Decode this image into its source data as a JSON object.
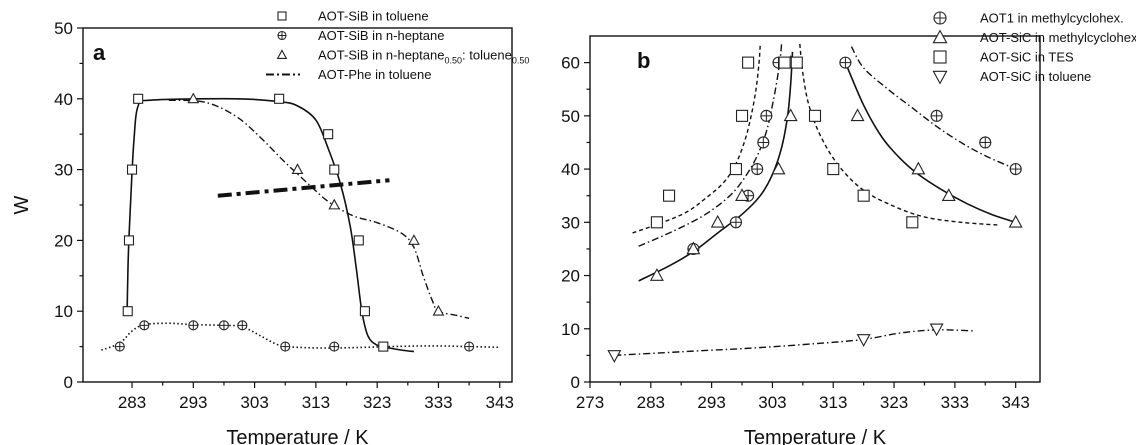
{
  "chart_data": [
    {
      "panel_label": "a",
      "type": "scatter",
      "xlabel": "Temperature / K",
      "ylabel": "W",
      "xlim": [
        275,
        345
      ],
      "ylim": [
        0,
        50
      ],
      "xticks": [
        283,
        293,
        303,
        313,
        323,
        333,
        343
      ],
      "yticks": [
        0,
        10,
        20,
        30,
        40,
        50
      ],
      "legend_position": "top-right",
      "legend": [
        {
          "text": "AOT-SiB in toluene",
          "marker": "square",
          "line": "none"
        },
        {
          "text": "AOT-SiB in n-heptane",
          "marker": "circle-plus",
          "line": "none"
        },
        {
          "text": "AOT-SiB in n-heptane",
          "sub1": "0.50",
          "mid": ": toluene",
          "sub2": "0.50",
          "marker": "triangle",
          "line": "none"
        },
        {
          "text": "AOT-Phe in toluene",
          "marker": "none",
          "line": "dashdot-thick"
        }
      ],
      "series": [
        {
          "name": "AOT-SiB in toluene",
          "marker": "square",
          "points": [
            [
              282.3,
              10
            ],
            [
              282.5,
              20
            ],
            [
              283,
              30
            ],
            [
              284,
              40
            ],
            [
              307,
              40
            ],
            [
              315,
              35
            ],
            [
              316,
              30
            ],
            [
              320,
              20
            ],
            [
              321,
              10
            ],
            [
              324,
              5
            ]
          ],
          "curve": [
            [
              282.2,
              10
            ],
            [
              282.4,
              18
            ],
            [
              282.8,
              26
            ],
            [
              283.3,
              34
            ],
            [
              284,
              39
            ],
            [
              286,
              39.8
            ],
            [
              300,
              40
            ],
            [
              307,
              39.6
            ],
            [
              310,
              39
            ],
            [
              313,
              37
            ],
            [
              315,
              33
            ],
            [
              317,
              28
            ],
            [
              318.6,
              22
            ],
            [
              319.6,
              16
            ],
            [
              320.5,
              10
            ],
            [
              321.5,
              6.5
            ],
            [
              323,
              5.2
            ],
            [
              325,
              4.8
            ],
            [
              327,
              4.5
            ],
            [
              329,
              4.3
            ]
          ],
          "curve_style": "solid"
        },
        {
          "name": "AOT-SiB in n-heptane",
          "marker": "circle-plus",
          "points": [
            [
              281,
              5
            ],
            [
              285,
              8
            ],
            [
              293,
              8
            ],
            [
              298,
              8
            ],
            [
              301,
              8
            ],
            [
              308,
              5
            ],
            [
              316,
              5
            ],
            [
              338,
              5
            ]
          ],
          "curve": [
            [
              278,
              4.5
            ],
            [
              281,
              5.5
            ],
            [
              283,
              7.2
            ],
            [
              285,
              8.1
            ],
            [
              289,
              8.3
            ],
            [
              293,
              8.1
            ],
            [
              298,
              8
            ],
            [
              301,
              7.8
            ],
            [
              304,
              6.5
            ],
            [
              307,
              5.2
            ],
            [
              310,
              4.9
            ],
            [
              316,
              4.8
            ],
            [
              325,
              5
            ],
            [
              332,
              5.1
            ],
            [
              338,
              5
            ],
            [
              343,
              4.9
            ]
          ],
          "curve_style": "dotted"
        },
        {
          "name": "AOT-SiB in n-heptane 0.50 : toluene 0.50",
          "marker": "triangle",
          "points": [
            [
              293,
              40
            ],
            [
              310,
              30
            ],
            [
              316,
              25
            ],
            [
              329,
              20
            ],
            [
              333,
              10
            ]
          ],
          "curve": [
            [
              289,
              39.8
            ],
            [
              295,
              39.5
            ],
            [
              300,
              37.5
            ],
            [
              304,
              34.5
            ],
            [
              308,
              31
            ],
            [
              312,
              27.8
            ],
            [
              315,
              25.5
            ],
            [
              319,
              23.5
            ],
            [
              323,
              22.5
            ],
            [
              327,
              21
            ],
            [
              329,
              19
            ],
            [
              330.5,
              15
            ],
            [
              332,
              11.5
            ],
            [
              333,
              10
            ],
            [
              336,
              9.4
            ],
            [
              338,
              9
            ]
          ],
          "curve_style": "dashdot"
        },
        {
          "name": "AOT-Phe in toluene",
          "marker": "none",
          "points": [],
          "curve": [
            [
              297,
              26.3
            ],
            [
              325,
              28.5
            ]
          ],
          "curve_style": "dashdot-thick"
        }
      ]
    },
    {
      "panel_label": "b",
      "type": "scatter",
      "xlabel": "Temperature / K",
      "ylabel": "",
      "xlim": [
        273,
        347
      ],
      "ylim": [
        0,
        65
      ],
      "xticks": [
        273,
        283,
        293,
        303,
        313,
        323,
        333,
        343
      ],
      "yticks": [
        0,
        10,
        20,
        30,
        40,
        50,
        60
      ],
      "legend_position": "top-right",
      "legend": [
        {
          "text": "AOT1 in methylcyclohex.",
          "marker": "circle-plus-large",
          "line": "none"
        },
        {
          "text": "AOT-SiC in methylcyclohex",
          "marker": "triangle-large",
          "line": "none"
        },
        {
          "text": "AOT-SiC in TES",
          "marker": "square-large",
          "line": "none"
        },
        {
          "text": "AOT-SiC in toluene",
          "marker": "triangle-down-large",
          "line": "none"
        }
      ],
      "series": [
        {
          "name": "AOT1 in methylcyclohex.",
          "marker": "circle-plus",
          "points": [
            [
              290,
              25
            ],
            [
              297,
              30
            ],
            [
              299,
              35
            ],
            [
              300.5,
              40
            ],
            [
              301.5,
              45
            ],
            [
              302,
              50
            ],
            [
              304,
              60
            ],
            [
              315,
              60
            ],
            [
              330,
              50
            ],
            [
              338,
              45
            ],
            [
              343,
              40
            ]
          ],
          "curve_left": [
            [
              281,
              25.5
            ],
            [
              287,
              28.5
            ],
            [
              292,
              31.5
            ],
            [
              296,
              35
            ],
            [
              298.5,
              38.5
            ],
            [
              300.5,
              42.5
            ],
            [
              302,
              47
            ],
            [
              303,
              52
            ],
            [
              303.8,
              57
            ],
            [
              304.3,
              61
            ],
            [
              304.5,
              63.5
            ]
          ],
          "curve_right": [
            [
              316,
              63
            ],
            [
              318,
              59
            ],
            [
              322,
              55
            ],
            [
              326,
              51.5
            ],
            [
              330,
              48
            ],
            [
              334,
              45
            ],
            [
              338,
              42.5
            ],
            [
              342,
              40.5
            ]
          ],
          "curve_style": "dashdot"
        },
        {
          "name": "AOT-SiC in methylcyclohex",
          "marker": "triangle",
          "points": [
            [
              284,
              20
            ],
            [
              290,
              25
            ],
            [
              294,
              30
            ],
            [
              298,
              35
            ],
            [
              304,
              40
            ],
            [
              306,
              50
            ],
            [
              306,
              60
            ],
            [
              317,
              50
            ],
            [
              327,
              40
            ],
            [
              332,
              35
            ],
            [
              343,
              30
            ]
          ],
          "curve_left": [
            [
              281,
              19
            ],
            [
              286,
              21.8
            ],
            [
              290,
              24.5
            ],
            [
              294,
              28
            ],
            [
              298,
              31.5
            ],
            [
              301,
              35
            ],
            [
              303,
              39
            ],
            [
              304.5,
              44
            ],
            [
              305.5,
              50
            ],
            [
              306,
              56
            ],
            [
              306.3,
              62
            ]
          ],
          "curve_right": [
            [
              315,
              60
            ],
            [
              318,
              52
            ],
            [
              321,
              46
            ],
            [
              324,
              42
            ],
            [
              327,
              39
            ],
            [
              331,
              36
            ],
            [
              335,
              33.5
            ],
            [
              339,
              31.5
            ],
            [
              343,
              30
            ]
          ],
          "curve_style": "solid"
        },
        {
          "name": "AOT-SiC in TES",
          "marker": "square",
          "points": [
            [
              284,
              30
            ],
            [
              286,
              35
            ],
            [
              297,
              40
            ],
            [
              298,
              50
            ],
            [
              299,
              60
            ],
            [
              305,
              60
            ],
            [
              307,
              60
            ],
            [
              310,
              50
            ],
            [
              313,
              40
            ],
            [
              318,
              35
            ],
            [
              326,
              30
            ]
          ],
          "curve_left": [
            [
              280,
              28
            ],
            [
              285,
              30
            ],
            [
              289,
              32
            ],
            [
              292,
              34.5
            ],
            [
              295,
              37.5
            ],
            [
              297,
              41
            ],
            [
              298.5,
              45.5
            ],
            [
              299.5,
              50
            ],
            [
              300.3,
              55
            ],
            [
              300.8,
              60
            ],
            [
              301,
              63.5
            ]
          ],
          "curve_right": [
            [
              307.5,
              63.5
            ],
            [
              308,
              58
            ],
            [
              309,
              52
            ],
            [
              311,
              46
            ],
            [
              314,
              40.5
            ],
            [
              318,
              36
            ],
            [
              323,
              33
            ],
            [
              328,
              31
            ],
            [
              334,
              30
            ],
            [
              340,
              29.5
            ]
          ],
          "curve_style": "dashed"
        },
        {
          "name": "AOT-SiC in toluene",
          "marker": "triangle-down",
          "points": [
            [
              277,
              5
            ],
            [
              318,
              8
            ],
            [
              330,
              10
            ]
          ],
          "curve": [
            [
              277,
              5
            ],
            [
              290,
              5.8
            ],
            [
              300,
              6.4
            ],
            [
              310,
              7.2
            ],
            [
              318,
              8
            ],
            [
              324,
              9.2
            ],
            [
              330,
              9.8
            ],
            [
              336,
              9.6
            ]
          ],
          "curve_style": "dashdot"
        }
      ]
    }
  ]
}
